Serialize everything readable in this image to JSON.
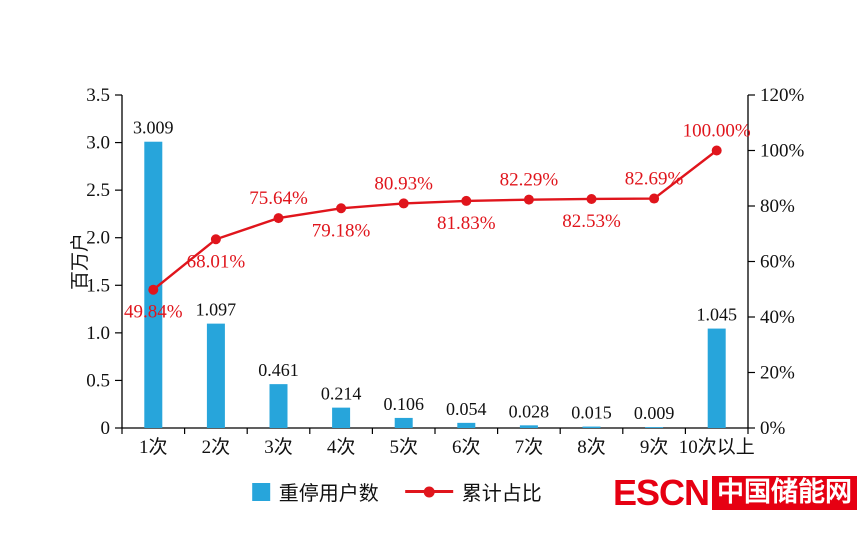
{
  "chart_data": {
    "type": "bar",
    "subtype": "pareto-combo",
    "categories": [
      "1次",
      "2次",
      "3次",
      "4次",
      "5次",
      "6次",
      "7次",
      "8次",
      "9次",
      "10次以上"
    ],
    "series": [
      {
        "name": "重停用户数",
        "kind": "bar",
        "values": [
          3.009,
          1.097,
          0.461,
          0.214,
          0.106,
          0.054,
          0.028,
          0.015,
          0.009,
          1.045
        ],
        "value_labels": [
          "3.009",
          "1.097",
          "0.461",
          "0.214",
          "0.106",
          "0.054",
          "0.028",
          "0.015",
          "0.009",
          "1.045"
        ],
        "axis": "left"
      },
      {
        "name": "累计占比",
        "kind": "line",
        "values": [
          49.84,
          68.01,
          75.64,
          79.18,
          80.93,
          81.83,
          82.29,
          82.53,
          82.69,
          100.0
        ],
        "value_labels": [
          "49.84%",
          "68.01%",
          "75.64%",
          "79.18%",
          "80.93%",
          "81.83%",
          "82.29%",
          "82.53%",
          "82.69%",
          "100.00%"
        ],
        "label_placements": [
          "below",
          "below",
          "above",
          "below",
          "above",
          "below",
          "above",
          "below",
          "above",
          "above"
        ],
        "axis": "right"
      }
    ],
    "left_axis": {
      "label": "百万户",
      "min": 0,
      "max": 3.5,
      "step": 0.5,
      "ticks": [
        "0",
        "0.5",
        "1.0",
        "1.5",
        "2.0",
        "2.5",
        "3.0",
        "3.5"
      ]
    },
    "right_axis": {
      "min": 0,
      "max": 120,
      "step": 20,
      "ticks": [
        "0%",
        "20%",
        "40%",
        "60%",
        "80%",
        "100%",
        "120%"
      ]
    },
    "legend": [
      "重停用户数",
      "累计占比"
    ],
    "legend_position": "bottom",
    "grid": false,
    "title": "",
    "xlabel": "",
    "ylabel": "百万户"
  },
  "logo": {
    "en": "ESCN",
    "cn": "中国储能网"
  },
  "colors": {
    "bar": "#27A5DB",
    "line": "#E0151C",
    "pct_label": "#E0151C",
    "text": "#111111",
    "axis": "#000000",
    "logo_red": "#E60012",
    "background": "#FFFFFF"
  }
}
